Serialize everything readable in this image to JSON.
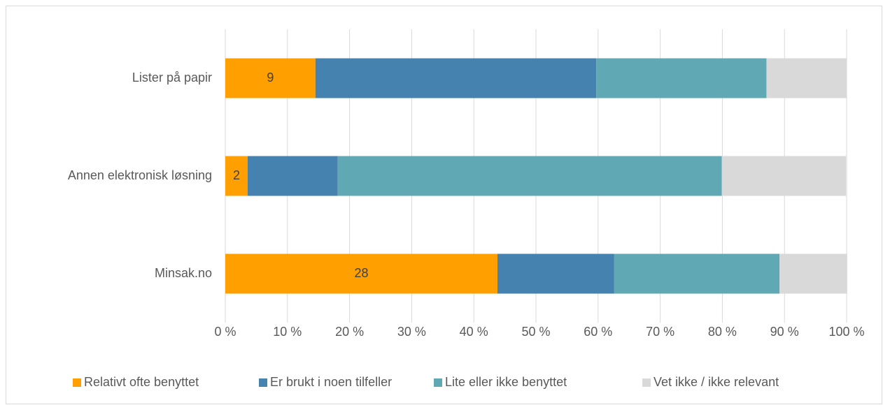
{
  "chart_data": {
    "type": "stacked-barh",
    "categories": [
      "Lister på papir",
      "Annen elektronisk løsning",
      "Minsak.no"
    ],
    "series": [
      {
        "name": "Relativt ofte benyttet",
        "color": "#FFA000",
        "values": [
          14.5,
          3.6,
          43.8
        ],
        "counts": [
          9,
          2,
          28
        ]
      },
      {
        "name": "Er brukt i noen tilfeller",
        "color": "#4682B0",
        "values": [
          45.2,
          14.5,
          18.8
        ]
      },
      {
        "name": "Lite eller ikke benyttet",
        "color": "#5FA8B4",
        "values": [
          27.4,
          61.8,
          26.6
        ]
      },
      {
        "name": "Vet ikke / ikke relevant",
        "color": "#D9D9D9",
        "values": [
          12.9,
          20.0,
          10.9
        ]
      }
    ],
    "xlim": [
      0,
      100
    ],
    "xticks": [
      {
        "value": 0,
        "label": "0 %"
      },
      {
        "value": 10,
        "label": "10 %"
      },
      {
        "value": 20,
        "label": "20 %"
      },
      {
        "value": 30,
        "label": "30 %"
      },
      {
        "value": 40,
        "label": "40 %"
      },
      {
        "value": 50,
        "label": "50 %"
      },
      {
        "value": 60,
        "label": "60 %"
      },
      {
        "value": 70,
        "label": "70 %"
      },
      {
        "value": 80,
        "label": "80 %"
      },
      {
        "value": 90,
        "label": "90 %"
      },
      {
        "value": 100,
        "label": "100 %"
      }
    ],
    "grid": true,
    "legend": "bottom"
  }
}
